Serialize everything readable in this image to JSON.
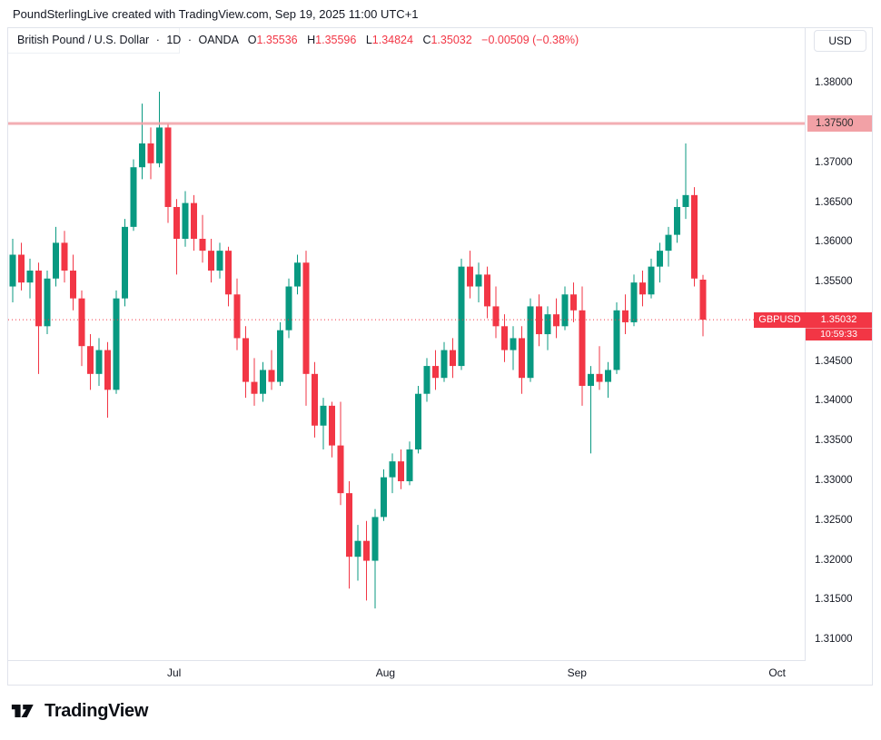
{
  "header": {
    "title": "PoundSterlingLive created with TradingView.com, Sep 19, 2025 11:00 UTC+1"
  },
  "toolbar": {
    "currency_button": "USD"
  },
  "legend": {
    "symbol": "British Pound / U.S. Dollar",
    "separator": "·",
    "interval": "1D",
    "exchange": "OANDA",
    "ohlc": [
      {
        "label": "O",
        "value": "1.35536"
      },
      {
        "label": "H",
        "value": "1.35596"
      },
      {
        "label": "L",
        "value": "1.34824"
      },
      {
        "label": "C",
        "value": "1.35032"
      }
    ],
    "change": "−0.00509 (−0.38%)"
  },
  "price_label": {
    "symbol": "GBPUSD",
    "price": "1.35032",
    "countdown": "10:59:33"
  },
  "level_label": "1.37500",
  "footer": {
    "logo_text": "TradingView"
  },
  "colors": {
    "up": "#089981",
    "down": "#f23645",
    "line_pink": "#f2a1a6",
    "accent_red": "#f23645",
    "text": "#131722",
    "border": "#e0e3eb"
  },
  "chart_data": {
    "type": "candlestick",
    "symbol": "GBP/USD",
    "interval": "1D",
    "exchange": "OANDA",
    "ylabel": "USD",
    "ylim": [
      1.3075,
      1.387
    ],
    "spacing": 9.5,
    "grid": false,
    "legend_position": "top-left",
    "horizontal_line": {
      "value": 1.375,
      "label": "1.37500"
    },
    "current_price": {
      "value": 1.35032,
      "label": "1.35032",
      "direction": "down",
      "countdown": "10:59:33"
    },
    "last_candle": {
      "open": 1.35536,
      "high": 1.35596,
      "low": 1.34824,
      "close": 1.35032,
      "change": -0.00509,
      "change_pct": -0.38
    },
    "price_axis_ticks": [
      {
        "label": "1.38000",
        "value": 1.38
      },
      {
        "label": "1.37500",
        "value": 1.375,
        "highlighted": true
      },
      {
        "label": "1.37000",
        "value": 1.37
      },
      {
        "label": "1.36500",
        "value": 1.365
      },
      {
        "label": "1.36000",
        "value": 1.36
      },
      {
        "label": "1.35500",
        "value": 1.355
      },
      {
        "label": "1.34500",
        "value": 1.345
      },
      {
        "label": "1.34000",
        "value": 1.34
      },
      {
        "label": "1.33500",
        "value": 1.335
      },
      {
        "label": "1.33000",
        "value": 1.33
      },
      {
        "label": "1.32500",
        "value": 1.325
      },
      {
        "label": "1.32000",
        "value": 1.32
      },
      {
        "label": "1.31500",
        "value": 1.315
      },
      {
        "label": "1.31000",
        "value": 1.31
      }
    ],
    "time_axis_ticks": [
      {
        "label": "Jul",
        "index": 18.7
      },
      {
        "label": "Aug",
        "index": 43.2
      },
      {
        "label": "Sep",
        "index": 65.4
      },
      {
        "label": "Oct",
        "index": 88.6
      }
    ],
    "candles": [
      [
        1.3545,
        1.3605,
        1.3525,
        1.3585
      ],
      [
        1.3585,
        1.36,
        1.354,
        1.355
      ],
      [
        1.355,
        1.358,
        1.353,
        1.3565
      ],
      [
        1.3565,
        1.3575,
        1.3435,
        1.3495
      ],
      [
        1.3495,
        1.3565,
        1.3485,
        1.3555
      ],
      [
        1.3555,
        1.362,
        1.3545,
        1.36
      ],
      [
        1.36,
        1.3615,
        1.355,
        1.3565
      ],
      [
        1.3565,
        1.3585,
        1.3515,
        1.353
      ],
      [
        1.353,
        1.354,
        1.3445,
        1.347
      ],
      [
        1.347,
        1.3485,
        1.3415,
        1.3435
      ],
      [
        1.3435,
        1.348,
        1.342,
        1.3465
      ],
      [
        1.3465,
        1.3475,
        1.338,
        1.3415
      ],
      [
        1.3415,
        1.354,
        1.341,
        1.353
      ],
      [
        1.353,
        1.363,
        1.352,
        1.362
      ],
      [
        1.362,
        1.3705,
        1.3615,
        1.3695
      ],
      [
        1.3695,
        1.3775,
        1.368,
        1.3725
      ],
      [
        1.3725,
        1.3745,
        1.368,
        1.37
      ],
      [
        1.37,
        1.379,
        1.3695,
        1.3745
      ],
      [
        1.3745,
        1.375,
        1.3625,
        1.3645
      ],
      [
        1.3645,
        1.3655,
        1.356,
        1.3605
      ],
      [
        1.3605,
        1.3665,
        1.3595,
        1.365
      ],
      [
        1.365,
        1.366,
        1.359,
        1.3605
      ],
      [
        1.3605,
        1.3635,
        1.3575,
        1.359
      ],
      [
        1.359,
        1.3605,
        1.355,
        1.3565
      ],
      [
        1.3565,
        1.36,
        1.3555,
        1.359
      ],
      [
        1.359,
        1.3595,
        1.352,
        1.3535
      ],
      [
        1.3535,
        1.3555,
        1.3465,
        1.348
      ],
      [
        1.348,
        1.3495,
        1.3405,
        1.3425
      ],
      [
        1.3425,
        1.3455,
        1.3395,
        1.341
      ],
      [
        1.341,
        1.345,
        1.34,
        1.344
      ],
      [
        1.344,
        1.3465,
        1.3415,
        1.3425
      ],
      [
        1.3425,
        1.35,
        1.342,
        1.349
      ],
      [
        1.349,
        1.3555,
        1.348,
        1.3545
      ],
      [
        1.3545,
        1.3585,
        1.3535,
        1.3575
      ],
      [
        1.3575,
        1.359,
        1.3395,
        1.3435
      ],
      [
        1.3435,
        1.345,
        1.3355,
        1.337
      ],
      [
        1.337,
        1.3405,
        1.334,
        1.3395
      ],
      [
        1.3395,
        1.34,
        1.333,
        1.3345
      ],
      [
        1.3345,
        1.34,
        1.327,
        1.3285
      ],
      [
        1.3285,
        1.33,
        1.3165,
        1.3205
      ],
      [
        1.3205,
        1.3245,
        1.3175,
        1.3225
      ],
      [
        1.3225,
        1.325,
        1.315,
        1.32
      ],
      [
        1.32,
        1.3265,
        1.314,
        1.3255
      ],
      [
        1.3255,
        1.3315,
        1.325,
        1.3305
      ],
      [
        1.3305,
        1.3335,
        1.3285,
        1.3325
      ],
      [
        1.3325,
        1.334,
        1.329,
        1.33
      ],
      [
        1.33,
        1.335,
        1.3295,
        1.334
      ],
      [
        1.334,
        1.342,
        1.3335,
        1.341
      ],
      [
        1.341,
        1.3455,
        1.34,
        1.3445
      ],
      [
        1.3445,
        1.3465,
        1.3415,
        1.343
      ],
      [
        1.343,
        1.3475,
        1.3425,
        1.3465
      ],
      [
        1.3465,
        1.348,
        1.343,
        1.3445
      ],
      [
        1.3445,
        1.358,
        1.344,
        1.357
      ],
      [
        1.357,
        1.359,
        1.353,
        1.3545
      ],
      [
        1.3545,
        1.3575,
        1.3525,
        1.356
      ],
      [
        1.356,
        1.357,
        1.3505,
        1.352
      ],
      [
        1.352,
        1.3545,
        1.348,
        1.3495
      ],
      [
        1.3495,
        1.351,
        1.345,
        1.3465
      ],
      [
        1.3465,
        1.3495,
        1.344,
        1.348
      ],
      [
        1.348,
        1.3495,
        1.341,
        1.343
      ],
      [
        1.343,
        1.353,
        1.3425,
        1.352
      ],
      [
        1.352,
        1.3535,
        1.347,
        1.3485
      ],
      [
        1.3485,
        1.352,
        1.3465,
        1.351
      ],
      [
        1.351,
        1.353,
        1.348,
        1.3495
      ],
      [
        1.3495,
        1.3545,
        1.349,
        1.3535
      ],
      [
        1.3535,
        1.355,
        1.35,
        1.3515
      ],
      [
        1.3515,
        1.3545,
        1.3395,
        1.342
      ],
      [
        1.342,
        1.3445,
        1.3335,
        1.3435
      ],
      [
        1.3435,
        1.347,
        1.3415,
        1.3425
      ],
      [
        1.3425,
        1.345,
        1.3405,
        1.344
      ],
      [
        1.344,
        1.3525,
        1.3435,
        1.3515
      ],
      [
        1.3515,
        1.3535,
        1.3485,
        1.35
      ],
      [
        1.35,
        1.356,
        1.3495,
        1.355
      ],
      [
        1.355,
        1.3565,
        1.352,
        1.3535
      ],
      [
        1.3535,
        1.358,
        1.353,
        1.357
      ],
      [
        1.357,
        1.36,
        1.355,
        1.359
      ],
      [
        1.359,
        1.362,
        1.357,
        1.361
      ],
      [
        1.361,
        1.3655,
        1.36,
        1.3645
      ],
      [
        1.3645,
        1.3725,
        1.363,
        1.366
      ],
      [
        1.366,
        1.367,
        1.3545,
        1.3555
      ],
      [
        1.35536,
        1.35596,
        1.34824,
        1.35032
      ]
    ]
  }
}
